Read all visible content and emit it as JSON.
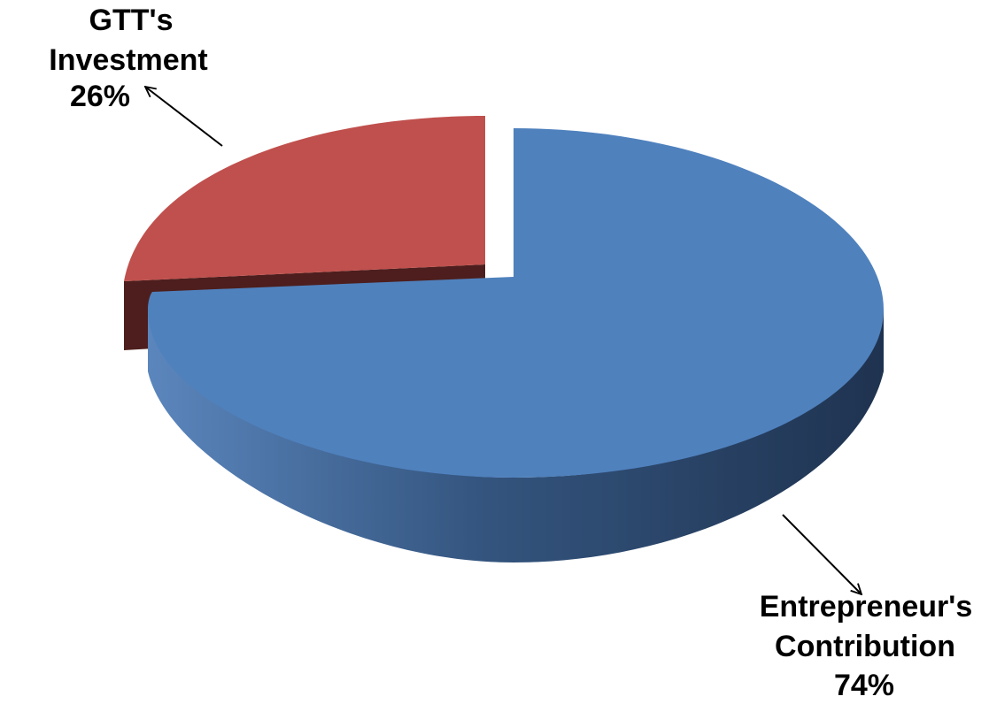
{
  "chart_data": {
    "type": "pie",
    "title": "",
    "labels": [
      "GTT's Investment",
      "Entrepreneur's Contribution"
    ],
    "values": [
      26,
      74
    ],
    "units": "%",
    "style": "3d-exploded",
    "legend": "none",
    "slices": [
      {
        "name_lines": [
          "GTT's",
          "Investment"
        ],
        "value_label": "26%",
        "value": 26,
        "color": "#c0504d",
        "side_color": "#4d1e1d"
      },
      {
        "name_lines": [
          "Entrepreneur's",
          "Contribution"
        ],
        "value_label": "74%",
        "value": 74,
        "color": "#4f81bd",
        "side_color": "#2f4d72"
      }
    ]
  }
}
